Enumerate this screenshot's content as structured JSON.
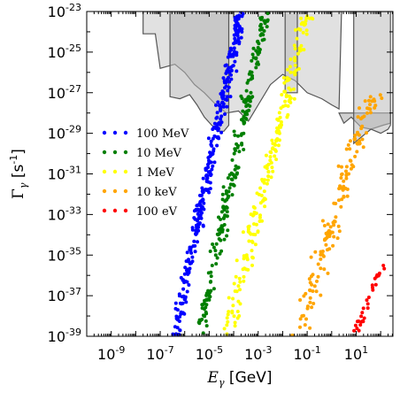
{
  "chart_data": {
    "type": "scatter",
    "x_scale": "log",
    "y_scale": "log",
    "xlim_exp": [
      -10,
      2.5
    ],
    "ylim_exp": [
      -39,
      -23
    ],
    "xlabel": {
      "symbol": "E",
      "sub": "γ",
      "unit": " [GeV]"
    },
    "ylabel": {
      "symbol": "Γ",
      "sub": "γ",
      "unit": " [s",
      "unit_sup": "-1",
      "unit_end": "]"
    },
    "x_ticks": [
      {
        "base": "10",
        "exp": "-9",
        "v": -9
      },
      {
        "base": "10",
        "exp": "-7",
        "v": -7
      },
      {
        "base": "10",
        "exp": "-5",
        "v": -5
      },
      {
        "base": "10",
        "exp": "-3",
        "v": -3
      },
      {
        "base": "10",
        "exp": "-1",
        "v": -1
      },
      {
        "base": "10",
        "exp": "1",
        "v": 1
      }
    ],
    "y_ticks": [
      {
        "base": "10",
        "exp": "-23",
        "v": -23
      },
      {
        "base": "10",
        "exp": "-25",
        "v": -25
      },
      {
        "base": "10",
        "exp": "-27",
        "v": -27
      },
      {
        "base": "10",
        "exp": "-29",
        "v": -29
      },
      {
        "base": "10",
        "exp": "-31",
        "v": -31
      },
      {
        "base": "10",
        "exp": "-33",
        "v": -33
      },
      {
        "base": "10",
        "exp": "-35",
        "v": -35
      },
      {
        "base": "10",
        "exp": "-37",
        "v": -37
      },
      {
        "base": "10",
        "exp": "-39",
        "v": -39
      }
    ],
    "grid": false,
    "legend_position": "left-middle",
    "series": [
      {
        "name": "100 MeV",
        "color": "#0000ff",
        "x_start": -6.4,
        "y_start": -39,
        "x_end": -3.7,
        "y_end": -23,
        "spread": 0.22,
        "count": 320,
        "y_max": -23
      },
      {
        "name": "10 MeV",
        "color": "#007f00",
        "x_start": -5.4,
        "y_start": -39,
        "x_end": -2.7,
        "y_end": -23,
        "spread": 0.22,
        "count": 220,
        "y_max": -23
      },
      {
        "name": "1 MeV",
        "color": "#ffff00",
        "x_start": -4.3,
        "y_start": -39,
        "x_end": -1.0,
        "y_end": -23,
        "spread": 0.28,
        "count": 210,
        "y_max": -23
      },
      {
        "name": "10 keV",
        "color": "#ffa500",
        "x_start": -1.4,
        "y_start": -39,
        "x_end": 1.7,
        "y_end": -27,
        "spread": 0.35,
        "count": 150,
        "y_max": -27
      },
      {
        "name": "100 eV",
        "color": "#ff0000",
        "x_start": 0.9,
        "y_start": -39,
        "x_end": 2.1,
        "y_end": -35.5,
        "spread": 0.15,
        "count": 30,
        "y_max": -35.5
      }
    ],
    "exclusion_regions": [
      {
        "color": "#c8c8c8",
        "points": [
          [
            -7.7,
            -23
          ],
          [
            -7.7,
            -24.1
          ],
          [
            -7.2,
            -24.1
          ],
          [
            -7.0,
            -25.8
          ],
          [
            -6.4,
            -25.6
          ],
          [
            -6.0,
            -26.0
          ],
          [
            -5.6,
            -26.6
          ],
          [
            -5.2,
            -27.0
          ],
          [
            -4.8,
            -27.5
          ],
          [
            -4.3,
            -28.0
          ],
          [
            -3.8,
            -27.9
          ],
          [
            -3.4,
            -28.4
          ],
          [
            -3.0,
            -27.6
          ],
          [
            -2.5,
            -26.6
          ],
          [
            -2.0,
            -26.1
          ],
          [
            -1.5,
            -26.4
          ],
          [
            -1.0,
            -27.0
          ],
          [
            -0.4,
            -27.3
          ],
          [
            0.0,
            -27.6
          ],
          [
            0.3,
            -27.8
          ],
          [
            0.4,
            -23
          ]
        ]
      },
      {
        "color": "#b4b4b4",
        "points": [
          [
            -6.6,
            -23
          ],
          [
            -6.6,
            -27.2
          ],
          [
            -6.2,
            -27.3
          ],
          [
            -5.8,
            -27.1
          ],
          [
            -5.5,
            -27.6
          ],
          [
            -5.2,
            -28.2
          ],
          [
            -4.9,
            -28.6
          ],
          [
            -4.6,
            -28.9
          ],
          [
            -4.4,
            -28.9
          ],
          [
            -4.2,
            -28.6
          ],
          [
            -4.2,
            -23
          ]
        ]
      },
      {
        "color": "#bebebe",
        "points": [
          [
            -1.9,
            -23
          ],
          [
            -1.9,
            -27.0
          ],
          [
            -1.4,
            -27.0
          ],
          [
            -1.4,
            -23
          ]
        ]
      },
      {
        "color": "#aaaaaa",
        "points": [
          [
            0.3,
            -28.0
          ],
          [
            0.5,
            -28.5
          ],
          [
            0.8,
            -28.2
          ],
          [
            1.2,
            -28.7
          ],
          [
            1.6,
            -28.8
          ],
          [
            2.1,
            -28.6
          ],
          [
            2.4,
            -28.5
          ],
          [
            2.4,
            -28.0
          ]
        ]
      },
      {
        "color": "#bbbbbb",
        "points": [
          [
            0.9,
            -23
          ],
          [
            0.9,
            -29.5
          ],
          [
            1.2,
            -29.2
          ],
          [
            1.6,
            -28.8
          ],
          [
            2.0,
            -29.0
          ],
          [
            2.3,
            -28.8
          ],
          [
            2.4,
            -28.6
          ],
          [
            2.4,
            -23
          ]
        ]
      }
    ]
  }
}
